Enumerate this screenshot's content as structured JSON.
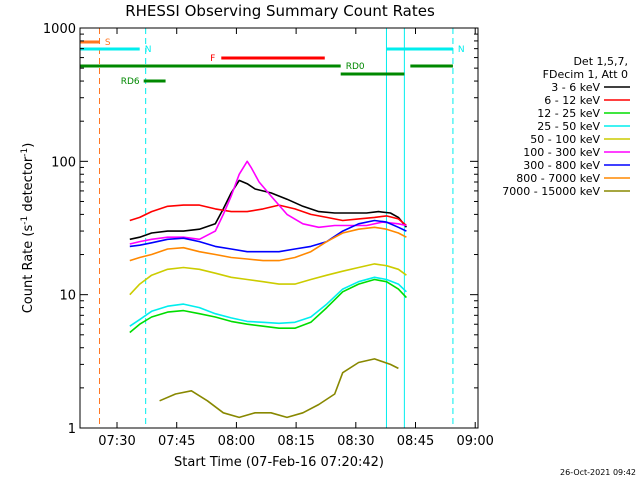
{
  "chart_data": {
    "type": "line",
    "title": "RHESSI Observing Summary Count Rates",
    "xlabel": "Start Time (07-Feb-16 07:20:42)",
    "ylabel_main": "Count Rate (s",
    "ylabel_sup1": "-1",
    "ylabel_mid": " detector",
    "ylabel_sup2": "-1",
    "ylabel_end": ")",
    "yscale": "log",
    "ylim": [
      1,
      1000
    ],
    "xlim_minutes": [
      0,
      100
    ],
    "x_ticks": [
      {
        "label": "07:30",
        "t": 9.3
      },
      {
        "label": "07:45",
        "t": 24.3
      },
      {
        "label": "08:00",
        "t": 39.3
      },
      {
        "label": "08:15",
        "t": 54.3
      },
      {
        "label": "08:30",
        "t": 69.3
      },
      {
        "label": "08:45",
        "t": 84.3
      },
      {
        "label": "09:00",
        "t": 99.3
      }
    ],
    "y_ticks": [
      {
        "label": "1",
        "v": 1
      },
      {
        "label": "10",
        "v": 10
      },
      {
        "label": "100",
        "v": 100
      },
      {
        "label": "1000",
        "v": 1000
      }
    ],
    "legend_header": [
      "Det 1,5,7,",
      "FDecim 1, Att 0"
    ],
    "legend_position": "right",
    "series": [
      {
        "name": "3 - 6 keV",
        "color": "#000000",
        "points": [
          [
            12.5,
            26
          ],
          [
            15,
            27
          ],
          [
            18,
            29
          ],
          [
            22,
            30
          ],
          [
            26,
            30
          ],
          [
            30,
            31
          ],
          [
            34,
            34
          ],
          [
            36,
            44
          ],
          [
            38,
            58
          ],
          [
            40,
            72
          ],
          [
            42,
            68
          ],
          [
            44,
            62
          ],
          [
            48,
            58
          ],
          [
            52,
            52
          ],
          [
            56,
            46
          ],
          [
            60,
            42
          ],
          [
            64,
            41
          ],
          [
            68,
            41
          ],
          [
            72,
            41
          ],
          [
            75,
            42
          ],
          [
            78,
            41
          ],
          [
            80,
            38
          ],
          [
            82,
            32
          ]
        ]
      },
      {
        "name": "6 - 12 keV",
        "color": "#ff0000",
        "points": [
          [
            12.5,
            36
          ],
          [
            15,
            38
          ],
          [
            18,
            42
          ],
          [
            22,
            46
          ],
          [
            26,
            47
          ],
          [
            30,
            47
          ],
          [
            34,
            44
          ],
          [
            38,
            42
          ],
          [
            42,
            42
          ],
          [
            46,
            44
          ],
          [
            50,
            47
          ],
          [
            54,
            44
          ],
          [
            58,
            40
          ],
          [
            62,
            38
          ],
          [
            66,
            36
          ],
          [
            70,
            37
          ],
          [
            74,
            38
          ],
          [
            77,
            39
          ],
          [
            80,
            37
          ],
          [
            82,
            33
          ]
        ]
      },
      {
        "name": "12 - 25 keV",
        "color": "#00dd00",
        "points": [
          [
            12.5,
            5.2
          ],
          [
            15,
            6.0
          ],
          [
            18,
            6.8
          ],
          [
            22,
            7.4
          ],
          [
            26,
            7.6
          ],
          [
            30,
            7.2
          ],
          [
            34,
            6.8
          ],
          [
            38,
            6.3
          ],
          [
            42,
            6.0
          ],
          [
            46,
            5.8
          ],
          [
            50,
            5.6
          ],
          [
            54,
            5.6
          ],
          [
            58,
            6.2
          ],
          [
            62,
            8.0
          ],
          [
            66,
            10.5
          ],
          [
            70,
            12
          ],
          [
            74,
            13
          ],
          [
            77,
            12.5
          ],
          [
            80,
            11
          ],
          [
            82,
            9.5
          ]
        ]
      },
      {
        "name": "25 - 50 keV",
        "color": "#00eeee",
        "points": [
          [
            12.5,
            5.8
          ],
          [
            15,
            6.5
          ],
          [
            18,
            7.5
          ],
          [
            22,
            8.2
          ],
          [
            26,
            8.5
          ],
          [
            30,
            8.0
          ],
          [
            34,
            7.2
          ],
          [
            38,
            6.7
          ],
          [
            42,
            6.3
          ],
          [
            46,
            6.2
          ],
          [
            50,
            6.1
          ],
          [
            54,
            6.2
          ],
          [
            58,
            6.8
          ],
          [
            62,
            8.5
          ],
          [
            66,
            11
          ],
          [
            70,
            12.5
          ],
          [
            74,
            13.5
          ],
          [
            77,
            13
          ],
          [
            80,
            12
          ],
          [
            82,
            10.5
          ]
        ]
      },
      {
        "name": "50 - 100 keV",
        "color": "#cccc00",
        "points": [
          [
            12.5,
            10
          ],
          [
            15,
            12
          ],
          [
            18,
            14
          ],
          [
            22,
            15.5
          ],
          [
            26,
            16
          ],
          [
            30,
            15.5
          ],
          [
            34,
            14.5
          ],
          [
            38,
            13.5
          ],
          [
            42,
            13
          ],
          [
            46,
            12.5
          ],
          [
            50,
            12
          ],
          [
            54,
            12
          ],
          [
            58,
            13
          ],
          [
            62,
            14
          ],
          [
            66,
            15
          ],
          [
            70,
            16
          ],
          [
            74,
            17
          ],
          [
            77,
            16.5
          ],
          [
            80,
            15.5
          ],
          [
            82,
            14
          ]
        ]
      },
      {
        "name": "100 - 300 keV",
        "color": "#ff00ff",
        "points": [
          [
            12.5,
            24
          ],
          [
            15,
            25
          ],
          [
            18,
            26
          ],
          [
            22,
            27
          ],
          [
            26,
            27
          ],
          [
            30,
            26
          ],
          [
            34,
            30
          ],
          [
            36,
            40
          ],
          [
            38,
            55
          ],
          [
            40,
            80
          ],
          [
            42,
            100
          ],
          [
            43,
            90
          ],
          [
            45,
            70
          ],
          [
            48,
            55
          ],
          [
            52,
            40
          ],
          [
            56,
            34
          ],
          [
            60,
            32
          ],
          [
            64,
            33
          ],
          [
            68,
            33
          ],
          [
            72,
            33
          ],
          [
            76,
            35
          ],
          [
            80,
            34
          ],
          [
            82,
            33
          ]
        ]
      },
      {
        "name": "300 - 800 keV",
        "color": "#0000ff",
        "points": [
          [
            12.5,
            23
          ],
          [
            15,
            23.5
          ],
          [
            18,
            24.5
          ],
          [
            22,
            26
          ],
          [
            26,
            26.5
          ],
          [
            30,
            25
          ],
          [
            34,
            23
          ],
          [
            38,
            22
          ],
          [
            42,
            21
          ],
          [
            46,
            21
          ],
          [
            50,
            21
          ],
          [
            54,
            22
          ],
          [
            58,
            23
          ],
          [
            62,
            25
          ],
          [
            66,
            30
          ],
          [
            70,
            34
          ],
          [
            74,
            36
          ],
          [
            77,
            35
          ],
          [
            80,
            32
          ],
          [
            82,
            30
          ]
        ]
      },
      {
        "name": "800 - 7000 keV",
        "color": "#ff8800",
        "points": [
          [
            12.5,
            18
          ],
          [
            15,
            19
          ],
          [
            18,
            20
          ],
          [
            22,
            22
          ],
          [
            26,
            22.5
          ],
          [
            30,
            21
          ],
          [
            34,
            20
          ],
          [
            38,
            19
          ],
          [
            42,
            18.5
          ],
          [
            46,
            18
          ],
          [
            50,
            18
          ],
          [
            54,
            19
          ],
          [
            58,
            21
          ],
          [
            62,
            25
          ],
          [
            66,
            29
          ],
          [
            70,
            31
          ],
          [
            74,
            32
          ],
          [
            77,
            31
          ],
          [
            80,
            29
          ],
          [
            82,
            27
          ]
        ]
      },
      {
        "name": "7000 - 15000 keV",
        "color": "#888800",
        "points": [
          [
            20,
            1.6
          ],
          [
            24,
            1.8
          ],
          [
            28,
            1.9
          ],
          [
            32,
            1.6
          ],
          [
            36,
            1.3
          ],
          [
            40,
            1.2
          ],
          [
            44,
            1.3
          ],
          [
            48,
            1.3
          ],
          [
            52,
            1.2
          ],
          [
            56,
            1.3
          ],
          [
            60,
            1.5
          ],
          [
            64,
            1.8
          ],
          [
            66,
            2.6
          ],
          [
            70,
            3.1
          ],
          [
            74,
            3.3
          ],
          [
            78,
            3.0
          ],
          [
            80,
            2.8
          ]
        ]
      }
    ],
    "flags": [
      {
        "label": "S",
        "color": "#ff7722",
        "t0": 0,
        "t1": 5,
        "y": 0
      },
      {
        "label": "N",
        "color": "#00eeee",
        "t0": 0,
        "t1": 15,
        "y": 1
      },
      {
        "label": "N",
        "color": "#00eeee",
        "t0": 77,
        "t1": 93.7,
        "y": 1
      },
      {
        "label": "F",
        "color": "#ff0000",
        "t0": 35.5,
        "t1": 61.5,
        "y": 2
      },
      {
        "label": "RD0",
        "color": "#008800",
        "t0": 0,
        "t1": 65.5,
        "y": 3
      },
      {
        "label": "",
        "color": "#008800",
        "t0": 65.5,
        "t1": 81.5,
        "y": 4
      },
      {
        "label": "",
        "color": "#008800",
        "t0": 83,
        "t1": 93.7,
        "y": 3
      },
      {
        "label": "RD6",
        "color": "#008800",
        "t0": 16,
        "t1": 21.5,
        "y": 5
      }
    ],
    "vlines": [
      {
        "t": 4.9,
        "color": "#ff7722",
        "dashed": true
      },
      {
        "t": 16.5,
        "color": "#00eeee",
        "dashed": true
      },
      {
        "t": 77,
        "color": "#00eeee",
        "dashed": false
      },
      {
        "t": 81.5,
        "color": "#00eeee",
        "dashed": false
      },
      {
        "t": 93.7,
        "color": "#00eeee",
        "dashed": true
      }
    ],
    "timestamp": "26-Oct-2021 09:42"
  }
}
